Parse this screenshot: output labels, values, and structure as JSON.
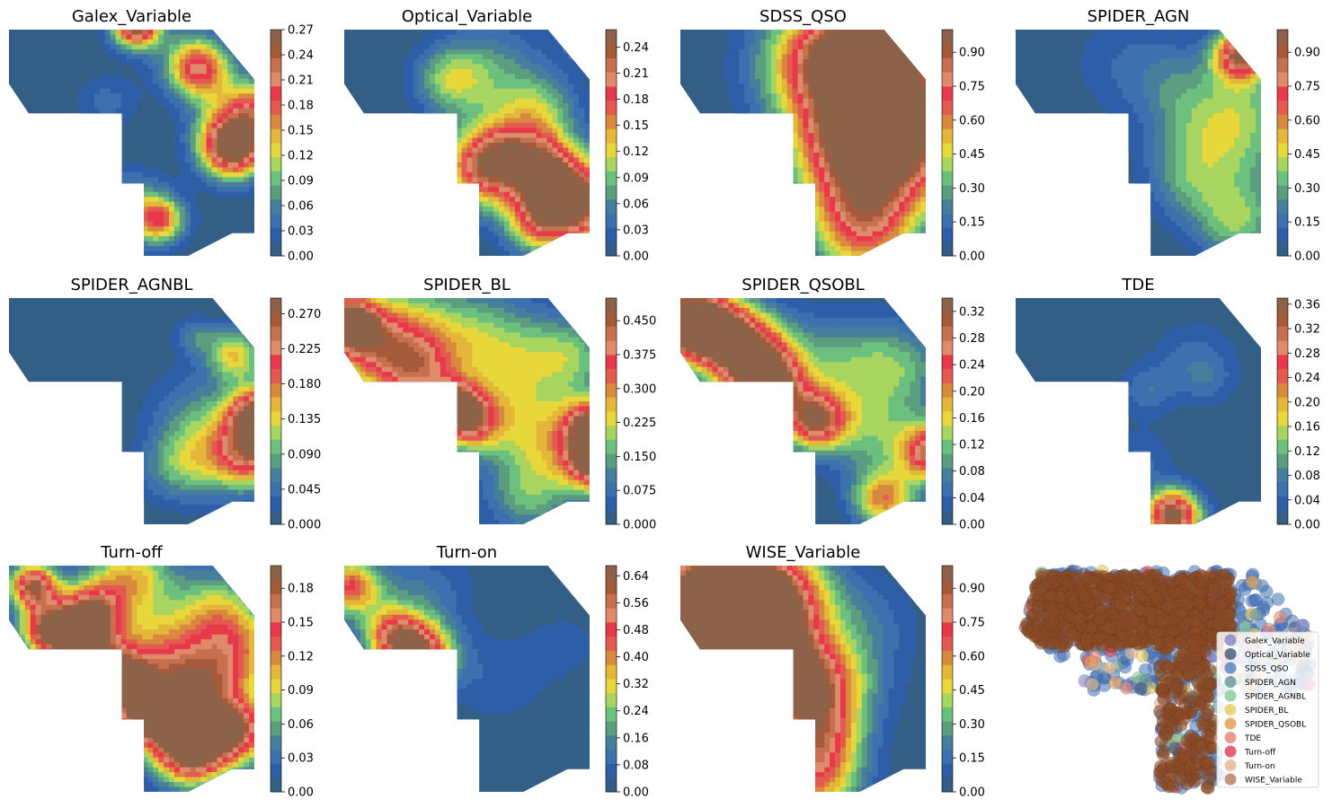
{
  "colormap": [
    "#335e86",
    "#2f5ea8",
    "#3d70ae",
    "#467f9b",
    "#5c9d80",
    "#6bc07e",
    "#a8d460",
    "#e8d73a",
    "#e4b73a",
    "#d9893e",
    "#e35a50",
    "#e8394a",
    "#e08a6c",
    "#c7704f",
    "#a65a3c",
    "#8c6249"
  ],
  "chart_data": [
    {
      "type": "contour",
      "title": "Galex_Variable",
      "colorbar_ticks": [
        "0.00",
        "0.03",
        "0.06",
        "0.09",
        "0.12",
        "0.15",
        "0.18",
        "0.21",
        "0.24",
        "0.27"
      ],
      "vmax": 0.27,
      "hotspots": [
        [
          5.2,
          -0.2,
          0.27,
          0.7
        ],
        [
          7.6,
          1.5,
          0.13,
          1.0
        ],
        [
          9.1,
          5.3,
          0.23,
          0.9
        ],
        [
          9.4,
          4.1,
          0.14,
          1.2
        ],
        [
          4.9,
          8.0,
          0.1,
          1.1
        ],
        [
          6.2,
          8.4,
          0.15,
          0.7
        ],
        [
          7.8,
          1.9,
          0.08,
          0.8
        ],
        [
          4.0,
          3.2,
          0.04,
          0.9
        ],
        [
          10.1,
          3.4,
          0.08,
          0.8
        ]
      ]
    },
    {
      "type": "contour",
      "title": "Optical_Variable",
      "colorbar_ticks": [
        "0.00",
        "0.03",
        "0.06",
        "0.09",
        "0.12",
        "0.15",
        "0.18",
        "0.21",
        "0.24"
      ],
      "vmax": 0.26,
      "hotspots": [
        [
          5.8,
          6.1,
          0.21,
          1.2
        ],
        [
          9.4,
          7.6,
          0.26,
          1.3
        ],
        [
          10.2,
          0.1,
          0.2,
          0.7
        ],
        [
          8.2,
          7.4,
          0.1,
          1.0
        ],
        [
          6.0,
          2.0,
          0.07,
          1.6
        ],
        [
          4.3,
          2.2,
          0.08,
          1.0
        ],
        [
          8.3,
          5.7,
          0.1,
          0.9
        ],
        [
          6.9,
          5.3,
          0.09,
          1.1
        ],
        [
          8.0,
          3.6,
          0.08,
          1.1
        ],
        [
          7.7,
          8.8,
          0.08,
          0.9
        ]
      ]
    },
    {
      "type": "contour",
      "title": "SDSS_QSO",
      "colorbar_ticks": [
        "0.00",
        "0.15",
        "0.30",
        "0.45",
        "0.60",
        "0.75",
        "0.90"
      ],
      "vmax": 1.0,
      "hotspots": [
        [
          7.5,
          1.2,
          0.55,
          2.4
        ],
        [
          8.0,
          4.2,
          0.55,
          2.0
        ],
        [
          7.4,
          7.0,
          0.5,
          1.8
        ],
        [
          7.5,
          9.0,
          0.45,
          1.5
        ],
        [
          9.0,
          2.0,
          0.35,
          2.5
        ],
        [
          6.5,
          1.0,
          0.35,
          1.6
        ],
        [
          9.8,
          5.5,
          0.3,
          1.6
        ],
        [
          4.7,
          1.8,
          0.15,
          1.4
        ],
        [
          6.5,
          4.8,
          0.25,
          1.4
        ]
      ]
    },
    {
      "type": "contour",
      "title": "SPIDER_AGN",
      "colorbar_ticks": [
        "0.00",
        "0.15",
        "0.30",
        "0.45",
        "0.60",
        "0.75",
        "0.90"
      ],
      "vmax": 1.0,
      "hotspots": [
        [
          9.2,
          1.1,
          0.9,
          0.8
        ],
        [
          9.2,
          5.0,
          0.25,
          1.8
        ],
        [
          7.7,
          4.3,
          0.22,
          1.6
        ],
        [
          9.0,
          8.5,
          0.35,
          1.2
        ],
        [
          7.0,
          6.8,
          0.2,
          1.2
        ],
        [
          4.5,
          1.5,
          0.12,
          1.6
        ],
        [
          6.6,
          2.3,
          0.12,
          1.2
        ],
        [
          9.5,
          3.0,
          0.12,
          1.0
        ]
      ]
    },
    {
      "type": "contour",
      "title": "SPIDER_AGNBL",
      "colorbar_ticks": [
        "0.000",
        "0.045",
        "0.090",
        "0.135",
        "0.180",
        "0.225",
        "0.270"
      ],
      "vmax": 0.29,
      "hotspots": [
        [
          10.2,
          5.2,
          0.29,
          0.9
        ],
        [
          9.9,
          7.0,
          0.18,
          1.0
        ],
        [
          9.2,
          2.5,
          0.14,
          0.8
        ],
        [
          8.1,
          6.9,
          0.1,
          1.3
        ],
        [
          7.6,
          5.0,
          0.05,
          1.4
        ],
        [
          6.6,
          7.6,
          0.05,
          1.0
        ],
        [
          7.6,
          1.7,
          0.06,
          0.6
        ]
      ]
    },
    {
      "type": "contour",
      "title": "SPIDER_BL",
      "colorbar_ticks": [
        "0.000",
        "0.075",
        "0.150",
        "0.225",
        "0.300",
        "0.375",
        "0.450"
      ],
      "vmax": 0.5,
      "hotspots": [
        [
          0.2,
          1.1,
          0.48,
          0.9
        ],
        [
          4.4,
          4.7,
          0.35,
          0.7
        ],
        [
          5.1,
          5.5,
          0.3,
          0.8
        ],
        [
          1.2,
          2.4,
          0.25,
          1.4
        ],
        [
          3.0,
          3.2,
          0.28,
          1.2
        ],
        [
          10.1,
          5.6,
          0.38,
          0.8
        ],
        [
          10.3,
          7.2,
          0.5,
          0.9
        ],
        [
          6.2,
          5.0,
          0.15,
          1.5
        ],
        [
          8.5,
          6.3,
          0.18,
          1.4
        ],
        [
          7.2,
          2.5,
          0.12,
          1.5
        ],
        [
          9.3,
          2.6,
          0.15,
          1.2
        ],
        [
          5.0,
          1.5,
          0.15,
          1.5
        ],
        [
          2.5,
          0.8,
          0.12,
          1.2
        ],
        [
          7.5,
          8.8,
          0.15,
          1.2
        ]
      ]
    },
    {
      "type": "contour",
      "title": "SPIDER_QSOBL",
      "colorbar_ticks": [
        "0.00",
        "0.04",
        "0.08",
        "0.12",
        "0.16",
        "0.20",
        "0.24",
        "0.28",
        "0.32"
      ],
      "vmax": 0.34,
      "hotspots": [
        [
          0.2,
          1.0,
          0.34,
          1.0
        ],
        [
          1.5,
          1.5,
          0.28,
          1.2
        ],
        [
          3.0,
          2.6,
          0.25,
          1.2
        ],
        [
          3.6,
          4.0,
          0.27,
          1.0
        ],
        [
          5.5,
          5.4,
          0.28,
          0.9
        ],
        [
          10.3,
          6.8,
          0.28,
          0.9
        ],
        [
          8.3,
          8.9,
          0.2,
          0.9
        ],
        [
          6.5,
          3.0,
          0.1,
          1.6
        ],
        [
          9.0,
          3.0,
          0.09,
          1.3
        ],
        [
          8.0,
          6.0,
          0.1,
          1.4
        ]
      ]
    },
    {
      "type": "contour",
      "title": "TDE",
      "colorbar_ticks": [
        "0.00",
        "0.04",
        "0.08",
        "0.12",
        "0.16",
        "0.20",
        "0.24",
        "0.28",
        "0.32",
        "0.36"
      ],
      "vmax": 0.37,
      "hotspots": [
        [
          6.4,
          9.6,
          0.37,
          0.8
        ],
        [
          7.3,
          2.8,
          0.06,
          1.2
        ],
        [
          5.3,
          4.1,
          0.06,
          0.8
        ],
        [
          5.1,
          7.1,
          0.05,
          0.9
        ],
        [
          7.9,
          3.7,
          0.03,
          0.7
        ]
      ]
    },
    {
      "type": "contour",
      "title": "Turn-off",
      "colorbar_ticks": [
        "0.00",
        "0.03",
        "0.06",
        "0.09",
        "0.12",
        "0.15",
        "0.18"
      ],
      "vmax": 0.2,
      "hotspots": [
        [
          1.0,
          0.9,
          0.18,
          0.7
        ],
        [
          1.6,
          2.8,
          0.16,
          0.8
        ],
        [
          3.0,
          3.3,
          0.18,
          1.0
        ],
        [
          3.4,
          1.9,
          0.12,
          0.9
        ],
        [
          4.5,
          5.0,
          0.18,
          0.8
        ],
        [
          5.6,
          6.5,
          0.17,
          0.9
        ],
        [
          7.5,
          8.3,
          0.16,
          1.0
        ],
        [
          9.3,
          7.3,
          0.16,
          1.0
        ],
        [
          7.6,
          5.6,
          0.12,
          1.2
        ],
        [
          6.8,
          7.3,
          0.1,
          1.2
        ],
        [
          6.0,
          4.0,
          0.1,
          1.4
        ],
        [
          9.2,
          4.0,
          0.1,
          1.3
        ],
        [
          8.5,
          2.0,
          0.08,
          1.3
        ],
        [
          5.0,
          0.5,
          0.1,
          1.2
        ]
      ]
    },
    {
      "type": "contour",
      "title": "Turn-on",
      "colorbar_ticks": [
        "0.00",
        "0.08",
        "0.16",
        "0.24",
        "0.32",
        "0.40",
        "0.48",
        "0.56",
        "0.64"
      ],
      "vmax": 0.67,
      "hotspots": [
        [
          0.2,
          0.9,
          0.4,
          0.8
        ],
        [
          3.0,
          3.9,
          0.6,
          1.0
        ],
        [
          2.0,
          3.0,
          0.3,
          0.8
        ],
        [
          1.6,
          1.6,
          0.12,
          1.5
        ],
        [
          6.3,
          5.0,
          0.08,
          1.4
        ],
        [
          3.8,
          1.0,
          0.07,
          1.2
        ],
        [
          9.0,
          3.5,
          0.06,
          1.1
        ]
      ]
    },
    {
      "type": "contour",
      "title": "WISE_Variable",
      "colorbar_ticks": [
        "0.00",
        "0.15",
        "0.30",
        "0.45",
        "0.60",
        "0.75",
        "0.90"
      ],
      "vmax": 1.0,
      "hotspots": [
        [
          0.6,
          2.3,
          0.98,
          1.8
        ],
        [
          3.3,
          3.6,
          0.8,
          1.6
        ],
        [
          5.2,
          5.3,
          0.7,
          1.4
        ],
        [
          5.6,
          7.5,
          0.55,
          1.3
        ],
        [
          5.5,
          9.5,
          0.5,
          1.3
        ],
        [
          2.2,
          1.0,
          0.7,
          1.8
        ],
        [
          4.2,
          1.2,
          0.45,
          1.5
        ],
        [
          7.5,
          2.5,
          0.15,
          1.5
        ],
        [
          7.0,
          5.0,
          0.12,
          1.4
        ]
      ]
    },
    {
      "type": "scatter",
      "title": "",
      "legend": [
        "Galex_Variable",
        "Optical_Variable",
        "SDSS_QSO",
        "SPIDER_AGN",
        "SPIDER_AGNBL",
        "SPIDER_BL",
        "SPIDER_QSOBL",
        "TDE",
        "Turn-off",
        "Turn-on",
        "WISE_Variable"
      ],
      "legend_colors": [
        "#8c8cc8",
        "#4a6080",
        "#5a88c8",
        "#6f9aa0",
        "#8ccc9a",
        "#e8d060",
        "#e8a058",
        "#e88878",
        "#e04860",
        "#e8b890",
        "#b88064"
      ],
      "legend_position": "lower right"
    }
  ]
}
